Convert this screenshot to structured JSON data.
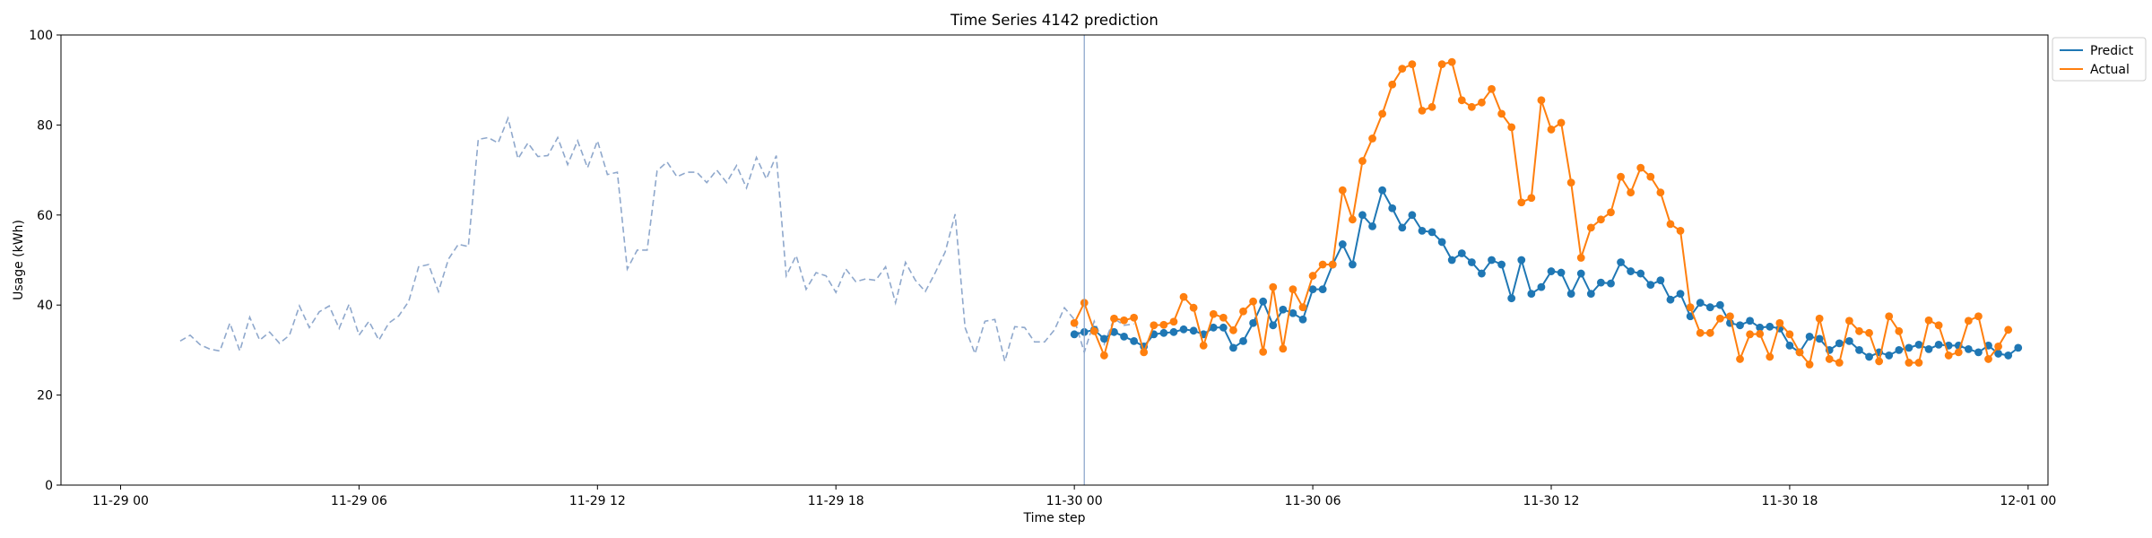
{
  "chart_data": {
    "type": "line",
    "title": "Time Series 4142 prediction",
    "xlabel": "Time step",
    "ylabel": "Usage (kWh)",
    "ylim": [
      0,
      100
    ],
    "yticks": [
      0,
      20,
      40,
      60,
      80,
      100
    ],
    "xlim": [
      -1.5,
      48.5
    ],
    "x_unit": "hours since 11-29 00:00",
    "xtick_positions": [
      0,
      6,
      12,
      18,
      24,
      30,
      36,
      42,
      48
    ],
    "xtick_labels": [
      "11-29 00",
      "11-29 06",
      "11-29 12",
      "11-29 18",
      "11-30 00",
      "11-30 06",
      "11-30 12",
      "11-30 18",
      "12-01 00"
    ],
    "split_x": 24.25,
    "legend_position": "upper-right-outside",
    "legend": [
      {
        "label": "Predict",
        "color": "#1f77b4"
      },
      {
        "label": "Actual",
        "color": "#ff7f0e"
      }
    ],
    "series": [
      {
        "name": "History",
        "style": "dashed",
        "color": "#8fa8cc",
        "x_start": 1.5,
        "x_step": 0.25,
        "values": [
          32.0,
          33.3,
          31.2,
          30.2,
          29.8,
          36.0,
          29.8,
          37.3,
          32.2,
          34.0,
          31.5,
          33.3,
          39.8,
          35.0,
          38.5,
          39.8,
          34.8,
          40.2,
          33.3,
          36.4,
          32.2,
          36.0,
          37.6,
          40.8,
          48.5,
          49.0,
          43.0,
          50.2,
          53.5,
          53.0,
          76.8,
          77.2,
          76.0,
          81.5,
          72.5,
          76.0,
          73.0,
          73.2,
          77.2,
          71.2,
          76.5,
          70.5,
          76.5,
          69.0,
          69.5,
          48.0,
          52.2,
          52.2,
          69.8,
          71.8,
          68.5,
          69.5,
          69.5,
          67.2,
          70.0,
          67.2,
          71.0,
          66.0,
          72.8,
          68.0,
          73.2,
          46.5,
          51.0,
          43.5,
          47.2,
          46.5,
          42.8,
          48.0,
          45.2,
          45.8,
          45.5,
          48.5,
          40.5,
          49.5,
          45.5,
          43.0,
          47.2,
          51.8,
          60.2,
          35.0,
          29.2,
          36.4,
          36.8,
          27.5,
          35.2,
          35.0,
          31.8,
          31.8,
          34.5,
          39.4,
          36.8,
          29.5,
          36.4,
          31.3,
          37.0,
          35.5,
          35.8
        ]
      },
      {
        "name": "Predict",
        "style": "solid-dots",
        "color": "#1f77b4",
        "x_start": 24.0,
        "x_step": 0.25,
        "values": [
          33.5,
          34.0,
          34.5,
          32.5,
          34.0,
          33.0,
          32.0,
          30.8,
          33.5,
          33.8,
          34.0,
          34.6,
          34.3,
          33.5,
          35.0,
          35.0,
          30.5,
          32.0,
          36.0,
          40.8,
          35.5,
          39.0,
          38.2,
          36.8,
          43.5,
          43.5,
          49.0,
          53.5,
          49.0,
          60.0,
          57.5,
          65.5,
          61.5,
          57.2,
          60.0,
          56.5,
          56.2,
          54.0,
          50.0,
          51.5,
          49.5,
          47.0,
          50.0,
          49.0,
          41.5,
          50.0,
          42.5,
          44.0,
          47.5,
          47.2,
          42.5,
          47.0,
          42.5,
          45.0,
          44.8,
          49.5,
          47.5,
          47.0,
          44.5,
          45.5,
          41.2,
          42.5,
          37.5,
          40.5,
          39.5,
          40.0,
          36.0,
          35.5,
          36.5,
          35.0,
          35.2,
          34.8,
          31.0,
          29.5,
          33.0,
          32.5,
          30.0,
          31.5,
          32.0,
          30.0,
          28.5,
          29.5,
          28.8,
          30.0,
          30.5,
          31.2,
          30.2,
          31.2,
          31.0,
          31.0,
          30.2,
          29.5,
          31.0,
          29.2,
          28.8,
          30.5
        ]
      },
      {
        "name": "Actual",
        "style": "solid-dots",
        "color": "#ff7f0e",
        "x_start": 24.0,
        "x_step": 0.25,
        "values": [
          36.0,
          40.5,
          34.2,
          28.8,
          37.0,
          36.6,
          37.2,
          29.5,
          35.5,
          35.6,
          36.3,
          41.8,
          39.4,
          31.0,
          38.0,
          37.2,
          34.4,
          38.6,
          40.8,
          29.6,
          44.0,
          30.3,
          43.5,
          39.5,
          46.5,
          49.0,
          49.0,
          65.5,
          59.0,
          72.0,
          77.0,
          82.5,
          89.0,
          92.5,
          93.5,
          83.2,
          84.0,
          93.5,
          94.0,
          85.5,
          84.0,
          85.0,
          88.0,
          82.5,
          79.5,
          62.8,
          63.8,
          85.5,
          79.0,
          80.5,
          67.2,
          50.5,
          57.2,
          59.0,
          60.6,
          68.5,
          65.0,
          70.5,
          68.5,
          65.0,
          58.0,
          56.5,
          39.5,
          33.8,
          33.8,
          37.0,
          37.5,
          28.0,
          33.5,
          33.6,
          28.5,
          36.0,
          33.5,
          29.5,
          26.8,
          37.0,
          28.0,
          27.2,
          36.5,
          34.2,
          33.8,
          27.5,
          37.5,
          34.2,
          27.2,
          27.2,
          36.6,
          35.5,
          28.8,
          29.5,
          36.5,
          37.5,
          28.0,
          30.8,
          34.5
        ]
      }
    ]
  }
}
